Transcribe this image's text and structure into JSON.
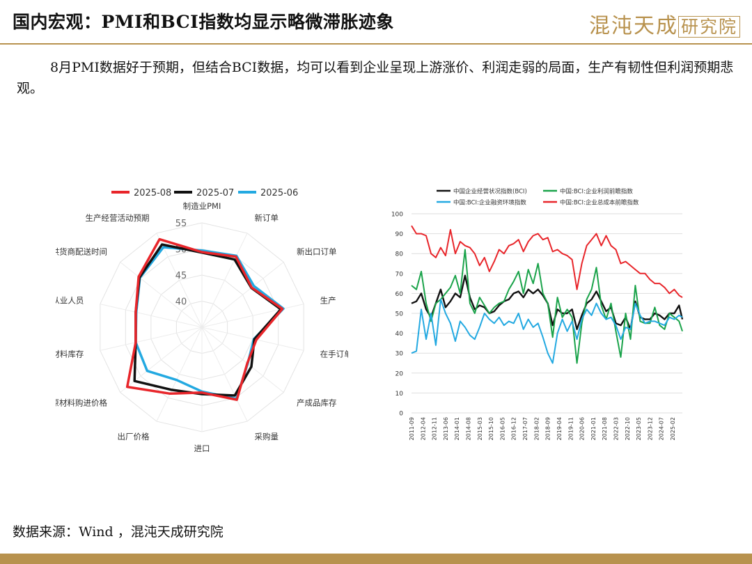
{
  "header": {
    "title": "国内宏观：PMI和BCI指数均显示略微滞胀迹象",
    "logo_text": "混沌天成",
    "logo_box_text": "研究院"
  },
  "paragraph": "8月PMI数据好于预期，但结合BCI数据，均可以看到企业呈现上游涨价、利润走弱的局面，生产有韧性但利润预期悲观。",
  "source": "数据来源：Wind ，混沌天成研究院",
  "colors": {
    "accent": "#b8924e"
  },
  "chart_data": [
    {
      "type": "radar",
      "title": "",
      "axes": [
        "制造业PMI",
        "新订单",
        "新出口订单",
        "生产",
        "在手订单",
        "产成品库存",
        "采购量",
        "进口",
        "出厂价格",
        "原材料购进价格",
        "原材料库存",
        "从业人员",
        "供货商配送时间",
        "生产经营活动预期"
      ],
      "radial_ticks": [
        40,
        45,
        50,
        55
      ],
      "rlim": [
        35,
        55
      ],
      "legend_position": "top",
      "series": [
        {
          "name": "2025-08",
          "color": "#e8252a",
          "values": [
            49.4,
            50.0,
            47.2,
            50.8,
            45.7,
            46.1,
            50.4,
            47.5,
            49.1,
            53.3,
            48.0,
            48.0,
            50.5,
            53.7
          ]
        },
        {
          "name": "2025-07",
          "color": "#111111",
          "values": [
            49.3,
            49.4,
            47.1,
            50.5,
            45.3,
            47.1,
            49.5,
            47.8,
            48.3,
            51.5,
            48.0,
            48.0,
            50.3,
            52.6
          ]
        },
        {
          "name": "2025-06",
          "color": "#23a9e1",
          "values": [
            49.7,
            50.2,
            47.7,
            51.0,
            45.2,
            46.2,
            50.2,
            47.3,
            46.2,
            48.4,
            48.0,
            47.9,
            50.2,
            52.0
          ]
        }
      ]
    },
    {
      "type": "line",
      "title": "",
      "ylim": [
        0,
        100
      ],
      "yticks": [
        0,
        10,
        20,
        30,
        40,
        50,
        60,
        70,
        80,
        90,
        100
      ],
      "xlim": [
        "2011-09",
        "2025-08"
      ],
      "xticks": [
        "2011-09",
        "2012-04",
        "2012-11",
        "2013-06",
        "2014-01",
        "2014-08",
        "2015-03",
        "2015-10",
        "2016-05",
        "2016-12",
        "2017-07",
        "2018-02",
        "2018-09",
        "2019-04",
        "2019-11",
        "2020-06",
        "2021-01",
        "2021-08",
        "2022-03",
        "2022-10",
        "2023-05",
        "2023-12",
        "2024-07",
        "2025-02"
      ],
      "grid": true,
      "legend_position": "top",
      "series": [
        {
          "name": "中国企业经营状况指数(BCI)",
          "color": "#111111",
          "points": [
            [
              "2011-09",
              55
            ],
            [
              "2011-12",
              56
            ],
            [
              "2012-03",
              60
            ],
            [
              "2012-06",
              52
            ],
            [
              "2012-09",
              48
            ],
            [
              "2012-12",
              55
            ],
            [
              "2013-03",
              62
            ],
            [
              "2013-06",
              53
            ],
            [
              "2013-09",
              56
            ],
            [
              "2013-12",
              60
            ],
            [
              "2014-03",
              58
            ],
            [
              "2014-06",
              69
            ],
            [
              "2014-09",
              58
            ],
            [
              "2014-12",
              52
            ],
            [
              "2015-03",
              54
            ],
            [
              "2015-06",
              53
            ],
            [
              "2015-09",
              50
            ],
            [
              "2015-12",
              51
            ],
            [
              "2016-03",
              54
            ],
            [
              "2016-06",
              56
            ],
            [
              "2016-09",
              57
            ],
            [
              "2016-12",
              60
            ],
            [
              "2017-03",
              61
            ],
            [
              "2017-06",
              58
            ],
            [
              "2017-09",
              62
            ],
            [
              "2017-12",
              60
            ],
            [
              "2018-03",
              62
            ],
            [
              "2018-06",
              59
            ],
            [
              "2018-09",
              55
            ],
            [
              "2018-12",
              44
            ],
            [
              "2019-03",
              52
            ],
            [
              "2019-06",
              50
            ],
            [
              "2019-09",
              50
            ],
            [
              "2019-12",
              52
            ],
            [
              "2020-03",
              42
            ],
            [
              "2020-06",
              49
            ],
            [
              "2020-09",
              55
            ],
            [
              "2020-12",
              57
            ],
            [
              "2021-03",
              61
            ],
            [
              "2021-06",
              56
            ],
            [
              "2021-09",
              51
            ],
            [
              "2021-12",
              53
            ],
            [
              "2022-03",
              45
            ],
            [
              "2022-06",
              44
            ],
            [
              "2022-09",
              48
            ],
            [
              "2022-12",
              42
            ],
            [
              "2023-03",
              56
            ],
            [
              "2023-06",
              48
            ],
            [
              "2023-09",
              47
            ],
            [
              "2023-12",
              47
            ],
            [
              "2024-03",
              50
            ],
            [
              "2024-06",
              49
            ],
            [
              "2024-09",
              47
            ],
            [
              "2024-12",
              50
            ],
            [
              "2025-03",
              50
            ],
            [
              "2025-06",
              54
            ],
            [
              "2025-08",
              47
            ]
          ]
        },
        {
          "name": "中国:BCI:企业利润前瞻指数",
          "color": "#1aa34a",
          "points": [
            [
              "2011-09",
              64
            ],
            [
              "2011-12",
              62
            ],
            [
              "2012-03",
              71
            ],
            [
              "2012-06",
              55
            ],
            [
              "2012-09",
              46
            ],
            [
              "2012-12",
              55
            ],
            [
              "2013-03",
              57
            ],
            [
              "2013-06",
              60
            ],
            [
              "2013-09",
              63
            ],
            [
              "2013-12",
              69
            ],
            [
              "2014-03",
              60
            ],
            [
              "2014-06",
              82
            ],
            [
              "2014-09",
              55
            ],
            [
              "2014-12",
              50
            ],
            [
              "2015-03",
              58
            ],
            [
              "2015-06",
              54
            ],
            [
              "2015-09",
              50
            ],
            [
              "2015-12",
              53
            ],
            [
              "2016-03",
              55
            ],
            [
              "2016-06",
              56
            ],
            [
              "2016-09",
              62
            ],
            [
              "2016-12",
              66
            ],
            [
              "2017-03",
              71
            ],
            [
              "2017-06",
              60
            ],
            [
              "2017-09",
              72
            ],
            [
              "2017-12",
              65
            ],
            [
              "2018-03",
              75
            ],
            [
              "2018-06",
              60
            ],
            [
              "2018-09",
              55
            ],
            [
              "2018-12",
              38
            ],
            [
              "2019-03",
              58
            ],
            [
              "2019-06",
              48
            ],
            [
              "2019-09",
              52
            ],
            [
              "2019-12",
              48
            ],
            [
              "2020-03",
              25
            ],
            [
              "2020-06",
              45
            ],
            [
              "2020-09",
              57
            ],
            [
              "2020-12",
              62
            ],
            [
              "2021-03",
              73
            ],
            [
              "2021-06",
              54
            ],
            [
              "2021-09",
              47
            ],
            [
              "2021-12",
              55
            ],
            [
              "2022-03",
              41
            ],
            [
              "2022-06",
              28
            ],
            [
              "2022-09",
              50
            ],
            [
              "2022-12",
              37
            ],
            [
              "2023-03",
              64
            ],
            [
              "2023-06",
              46
            ],
            [
              "2023-09",
              45
            ],
            [
              "2023-12",
              45
            ],
            [
              "2024-03",
              53
            ],
            [
              "2024-06",
              44
            ],
            [
              "2024-09",
              42
            ],
            [
              "2024-12",
              50
            ],
            [
              "2025-03",
              48
            ],
            [
              "2025-06",
              46
            ],
            [
              "2025-08",
              41
            ]
          ]
        },
        {
          "name": "中国:BCI:企业融资环境指数",
          "color": "#23a9e1",
          "points": [
            [
              "2011-09",
              30
            ],
            [
              "2011-12",
              31
            ],
            [
              "2012-03",
              52
            ],
            [
              "2012-06",
              37
            ],
            [
              "2012-09",
              50
            ],
            [
              "2012-12",
              34
            ],
            [
              "2013-03",
              57
            ],
            [
              "2013-06",
              50
            ],
            [
              "2013-09",
              45
            ],
            [
              "2013-12",
              36
            ],
            [
              "2014-03",
              46
            ],
            [
              "2014-06",
              43
            ],
            [
              "2014-09",
              39
            ],
            [
              "2014-12",
              37
            ],
            [
              "2015-03",
              43
            ],
            [
              "2015-06",
              50
            ],
            [
              "2015-09",
              47
            ],
            [
              "2015-12",
              45
            ],
            [
              "2016-03",
              48
            ],
            [
              "2016-06",
              44
            ],
            [
              "2016-09",
              46
            ],
            [
              "2016-12",
              45
            ],
            [
              "2017-03",
              50
            ],
            [
              "2017-06",
              42
            ],
            [
              "2017-09",
              47
            ],
            [
              "2017-12",
              43
            ],
            [
              "2018-03",
              45
            ],
            [
              "2018-06",
              38
            ],
            [
              "2018-09",
              30
            ],
            [
              "2018-12",
              25
            ],
            [
              "2019-03",
              40
            ],
            [
              "2019-06",
              47
            ],
            [
              "2019-09",
              41
            ],
            [
              "2019-12",
              46
            ],
            [
              "2020-03",
              37
            ],
            [
              "2020-06",
              47
            ],
            [
              "2020-09",
              52
            ],
            [
              "2020-12",
              49
            ],
            [
              "2021-03",
              55
            ],
            [
              "2021-06",
              50
            ],
            [
              "2021-09",
              47
            ],
            [
              "2021-12",
              48
            ],
            [
              "2022-03",
              44
            ],
            [
              "2022-06",
              37
            ],
            [
              "2022-09",
              43
            ],
            [
              "2022-12",
              42
            ],
            [
              "2023-03",
              55
            ],
            [
              "2023-06",
              49
            ],
            [
              "2023-09",
              45
            ],
            [
              "2023-12",
              46
            ],
            [
              "2024-03",
              46
            ],
            [
              "2024-06",
              45
            ],
            [
              "2024-09",
              44
            ],
            [
              "2024-12",
              48
            ],
            [
              "2025-03",
              47
            ],
            [
              "2025-06",
              49
            ],
            [
              "2025-08",
              48
            ]
          ]
        },
        {
          "name": "中国:BCI:企业总成本前瞻指数",
          "color": "#e8252a",
          "points": [
            [
              "2011-09",
              94
            ],
            [
              "2011-12",
              90
            ],
            [
              "2012-03",
              90
            ],
            [
              "2012-06",
              89
            ],
            [
              "2012-09",
              80
            ],
            [
              "2012-12",
              78
            ],
            [
              "2013-03",
              83
            ],
            [
              "2013-06",
              79
            ],
            [
              "2013-09",
              92
            ],
            [
              "2013-12",
              80
            ],
            [
              "2014-03",
              86
            ],
            [
              "2014-06",
              84
            ],
            [
              "2014-09",
              83
            ],
            [
              "2014-12",
              80
            ],
            [
              "2015-03",
              74
            ],
            [
              "2015-06",
              78
            ],
            [
              "2015-09",
              71
            ],
            [
              "2015-12",
              76
            ],
            [
              "2016-03",
              82
            ],
            [
              "2016-06",
              80
            ],
            [
              "2016-09",
              84
            ],
            [
              "2016-12",
              85
            ],
            [
              "2017-03",
              87
            ],
            [
              "2017-06",
              81
            ],
            [
              "2017-09",
              86
            ],
            [
              "2017-12",
              89
            ],
            [
              "2018-03",
              90
            ],
            [
              "2018-06",
              87
            ],
            [
              "2018-09",
              88
            ],
            [
              "2018-12",
              81
            ],
            [
              "2019-03",
              82
            ],
            [
              "2019-06",
              80
            ],
            [
              "2019-09",
              79
            ],
            [
              "2019-12",
              77
            ],
            [
              "2020-03",
              62
            ],
            [
              "2020-06",
              75
            ],
            [
              "2020-09",
              84
            ],
            [
              "2020-12",
              87
            ],
            [
              "2021-03",
              90
            ],
            [
              "2021-06",
              84
            ],
            [
              "2021-09",
              89
            ],
            [
              "2021-12",
              84
            ],
            [
              "2022-03",
              82
            ],
            [
              "2022-06",
              75
            ],
            [
              "2022-09",
              76
            ],
            [
              "2022-12",
              74
            ],
            [
              "2023-03",
              72
            ],
            [
              "2023-06",
              70
            ],
            [
              "2023-09",
              70
            ],
            [
              "2023-12",
              67
            ],
            [
              "2024-03",
              65
            ],
            [
              "2024-06",
              65
            ],
            [
              "2024-09",
              63
            ],
            [
              "2024-12",
              60
            ],
            [
              "2025-03",
              62
            ],
            [
              "2025-06",
              59
            ],
            [
              "2025-08",
              58
            ]
          ]
        }
      ]
    }
  ]
}
